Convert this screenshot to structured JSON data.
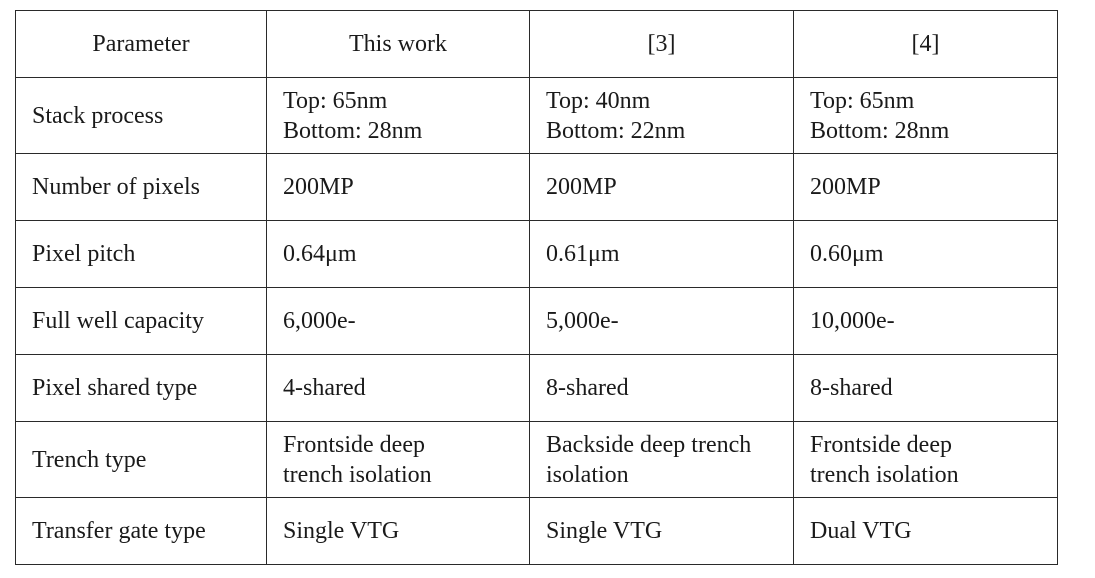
{
  "table": {
    "headers": [
      "Parameter",
      "This work",
      "[3]",
      "[4]"
    ],
    "rows": [
      {
        "parameter": "Stack process",
        "values": [
          [
            "Top: 65nm",
            "Bottom: 28nm"
          ],
          [
            "Top: 40nm",
            "Bottom: 22nm"
          ],
          [
            "Top: 65nm",
            "Bottom: 28nm"
          ]
        ]
      },
      {
        "parameter": "Number of pixels",
        "values": [
          [
            "200MP"
          ],
          [
            "200MP"
          ],
          [
            "200MP"
          ]
        ]
      },
      {
        "parameter": "Pixel pitch",
        "values": [
          [
            "0.64μm"
          ],
          [
            "0.61μm"
          ],
          [
            "0.60μm"
          ]
        ]
      },
      {
        "parameter": "Full well capacity",
        "values": [
          [
            "6,000e-"
          ],
          [
            "5,000e-"
          ],
          [
            "10,000e-"
          ]
        ]
      },
      {
        "parameter": "Pixel shared type",
        "values": [
          [
            "4-shared"
          ],
          [
            "8-shared"
          ],
          [
            "8-shared"
          ]
        ]
      },
      {
        "parameter": "Trench type",
        "values": [
          [
            "Frontside deep",
            "trench isolation"
          ],
          [
            "Backside deep trench",
            "isolation"
          ],
          [
            "Frontside deep",
            "trench isolation"
          ]
        ]
      },
      {
        "parameter": "Transfer gate type",
        "values": [
          [
            "Single VTG"
          ],
          [
            "Single VTG"
          ],
          [
            "Dual VTG"
          ]
        ]
      }
    ]
  }
}
